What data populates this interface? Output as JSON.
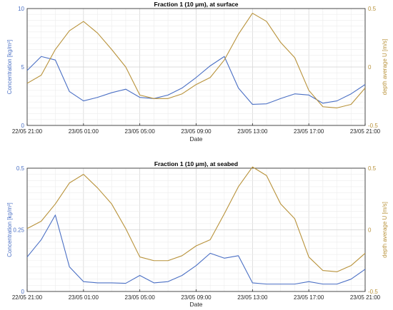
{
  "chart_data": [
    {
      "type": "line",
      "title": "Fraction 1 (10 μm), at surface",
      "xlabel": "Date",
      "ylabel_left": "Concentration [kg/m³]",
      "ylabel_right": "depth average U [m/s]",
      "ylim_left": [
        0,
        10
      ],
      "ylim_right": [
        -0.5,
        0.5
      ],
      "xlim_hours": [
        0,
        24
      ],
      "x_tick_labels": [
        "22/05 21:00",
        "23/05 01:00",
        "23/05 05:00",
        "23/05 09:00",
        "23/05 13:00",
        "23/05 17:00",
        "23/05 21:00"
      ],
      "y_ticks_left": [
        "0",
        "5",
        "10"
      ],
      "y_ticks_right": [
        "-0.5",
        "0",
        "0.5"
      ],
      "grid": true,
      "colors": {
        "left": "#4a6fc4",
        "right": "#b8923a"
      },
      "series": [
        {
          "axis": "left",
          "x": [
            0,
            1,
            2,
            3,
            4,
            5,
            6,
            7,
            8,
            9,
            10,
            11,
            12,
            13,
            14,
            15,
            16,
            17,
            18,
            19,
            20,
            21,
            22,
            23,
            24
          ],
          "values": [
            4.7,
            5.9,
            5.6,
            2.9,
            2.1,
            2.4,
            2.8,
            3.1,
            2.4,
            2.3,
            2.6,
            3.2,
            4.1,
            5.1,
            5.9,
            3.2,
            1.8,
            1.85,
            2.3,
            2.7,
            2.6,
            1.9,
            2.1,
            2.7,
            3.5
          ]
        },
        {
          "axis": "right",
          "x": [
            0,
            1,
            2,
            3,
            4,
            5,
            6,
            7,
            8,
            9,
            10,
            11,
            12,
            13,
            14,
            15,
            16,
            17,
            18,
            19,
            20,
            21,
            22,
            23,
            24
          ],
          "values": [
            -0.14,
            -0.07,
            0.15,
            0.31,
            0.39,
            0.29,
            0.15,
            0.0,
            -0.24,
            -0.27,
            -0.27,
            -0.23,
            -0.15,
            -0.09,
            0.06,
            0.28,
            0.46,
            0.39,
            0.21,
            0.08,
            -0.2,
            -0.34,
            -0.35,
            -0.32,
            -0.18
          ]
        }
      ]
    },
    {
      "type": "line",
      "title": "Fraction 1 (10 μm), at seabed",
      "xlabel": "Date",
      "ylabel_left": "Concentration [kg/m³]",
      "ylabel_right": "depth average U [m/s]",
      "ylim_left": [
        0,
        0.5
      ],
      "ylim_right": [
        -0.5,
        0.5
      ],
      "xlim_hours": [
        0,
        24
      ],
      "x_tick_labels": [
        "22/05 21:00",
        "23/05 01:00",
        "23/05 05:00",
        "23/05 09:00",
        "23/05 13:00",
        "23/05 17:00",
        "23/05 21:00"
      ],
      "y_ticks_left": [
        "0",
        "0.25",
        "0.5"
      ],
      "y_ticks_right": [
        "-0.5",
        "0",
        "0.5"
      ],
      "grid": true,
      "colors": {
        "left": "#4a6fc4",
        "right": "#b8923a"
      },
      "series": [
        {
          "axis": "left",
          "x": [
            0,
            1,
            2,
            3,
            4,
            5,
            6,
            7,
            8,
            9,
            10,
            11,
            12,
            13,
            14,
            15,
            16,
            17,
            18,
            19,
            20,
            21,
            22,
            23,
            24
          ],
          "values": [
            0.14,
            0.21,
            0.31,
            0.1,
            0.04,
            0.035,
            0.035,
            0.033,
            0.065,
            0.035,
            0.04,
            0.065,
            0.105,
            0.155,
            0.135,
            0.145,
            0.035,
            0.03,
            0.03,
            0.03,
            0.04,
            0.03,
            0.03,
            0.05,
            0.09
          ]
        },
        {
          "axis": "right",
          "x": [
            0,
            1,
            2,
            3,
            4,
            5,
            6,
            7,
            8,
            9,
            10,
            11,
            12,
            13,
            14,
            15,
            16,
            17,
            18,
            19,
            20,
            21,
            22,
            23,
            24
          ],
          "values": [
            0.01,
            0.07,
            0.21,
            0.38,
            0.45,
            0.34,
            0.21,
            0.01,
            -0.22,
            -0.25,
            -0.25,
            -0.21,
            -0.13,
            -0.08,
            0.13,
            0.35,
            0.51,
            0.44,
            0.21,
            0.09,
            -0.22,
            -0.33,
            -0.34,
            -0.29,
            -0.19
          ]
        }
      ]
    }
  ]
}
